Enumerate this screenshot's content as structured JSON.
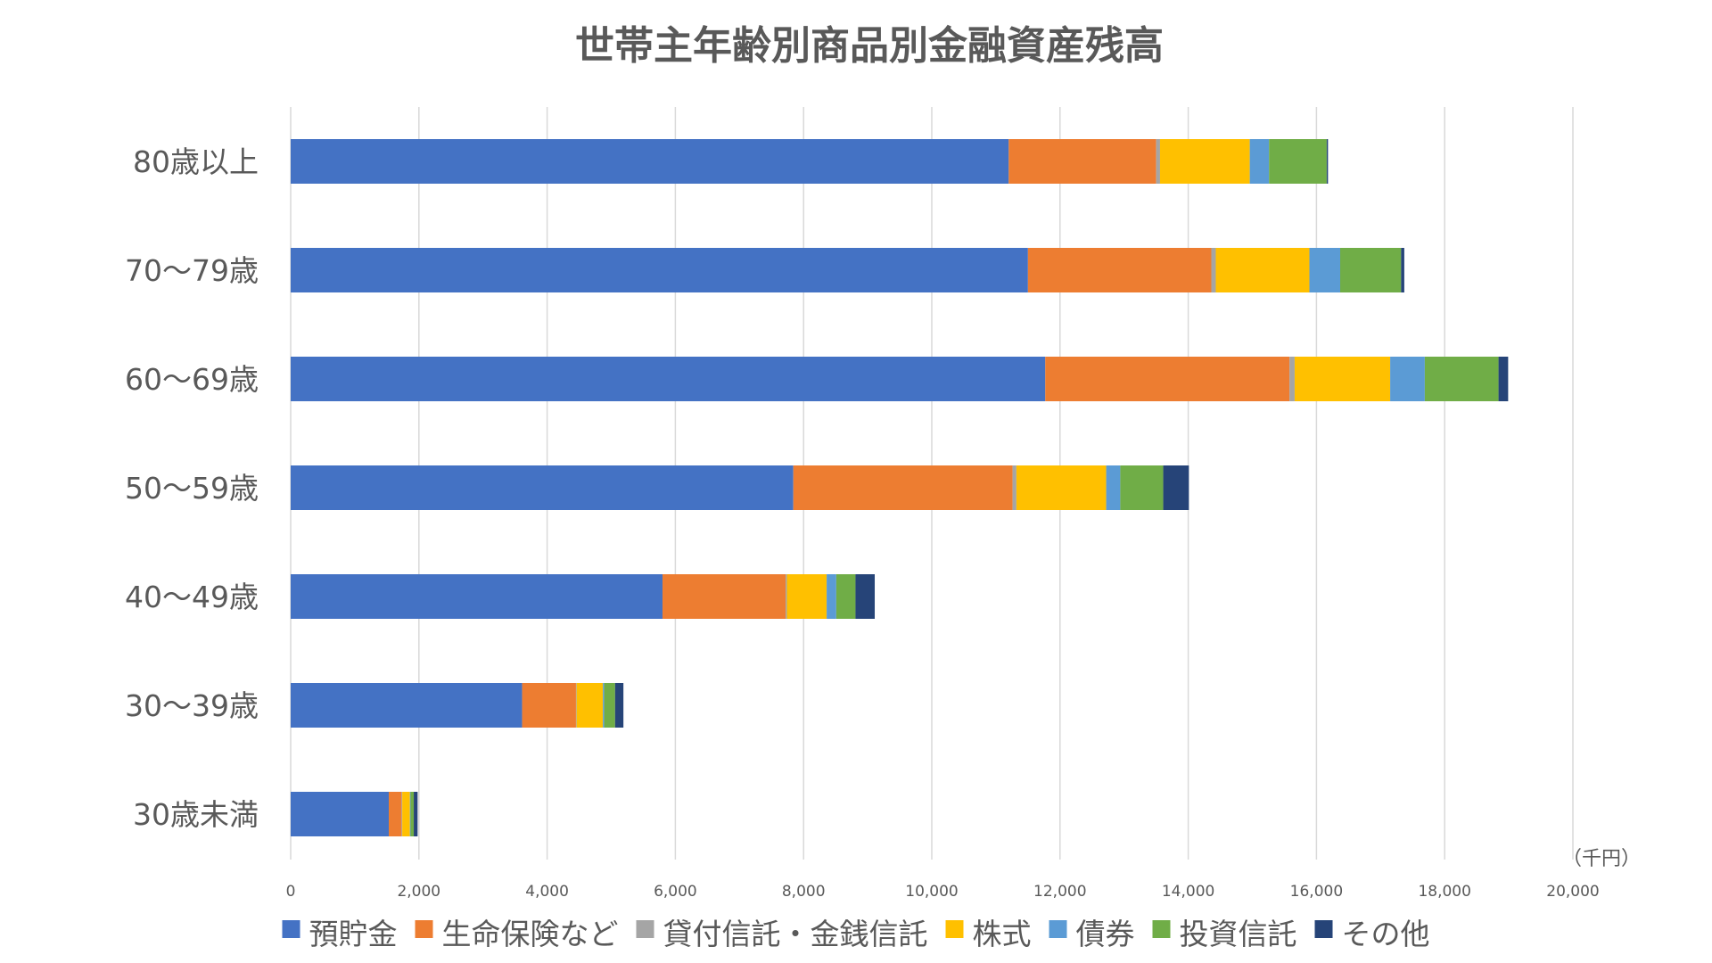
{
  "chart_data": {
    "type": "bar",
    "orientation": "horizontal",
    "stacked": true,
    "title": "世帯主年齢別商品別金融資産残高",
    "unit": "（千円）",
    "xlim": [
      0,
      20000
    ],
    "x_ticks": [
      "0",
      "2,000",
      "4,000",
      "6,000",
      "8,000",
      "10,000",
      "12,000",
      "14,000",
      "16,000",
      "18,000",
      "20,000"
    ],
    "grid": true,
    "legend_position": "bottom",
    "categories": [
      "80歳以上",
      "70〜79歳",
      "60〜69歳",
      "50〜59歳",
      "40〜49歳",
      "30〜39歳",
      "30歳未満"
    ],
    "series": [
      {
        "name": "預貯金",
        "color": "#4472C4",
        "values": [
          11200,
          11500,
          11770,
          7840,
          5800,
          3610,
          1530
        ]
      },
      {
        "name": "生命保険など",
        "color": "#ED7D31",
        "values": [
          2300,
          2860,
          3810,
          3420,
          1920,
          840,
          200
        ]
      },
      {
        "name": "貸付信託・金銭信託",
        "color": "#A5A5A5",
        "values": [
          60,
          70,
          80,
          60,
          20,
          10,
          10
        ]
      },
      {
        "name": "株式",
        "color": "#FFC000",
        "values": [
          1400,
          1460,
          1490,
          1400,
          620,
          410,
          120
        ]
      },
      {
        "name": "債券",
        "color": "#5B9BD5",
        "values": [
          300,
          480,
          540,
          220,
          150,
          20,
          10
        ]
      },
      {
        "name": "投資信託",
        "color": "#70AD47",
        "values": [
          900,
          950,
          1150,
          670,
          300,
          170,
          50
        ]
      },
      {
        "name": "その他",
        "color": "#264478",
        "values": [
          20,
          50,
          150,
          400,
          300,
          130,
          60
        ]
      }
    ]
  }
}
